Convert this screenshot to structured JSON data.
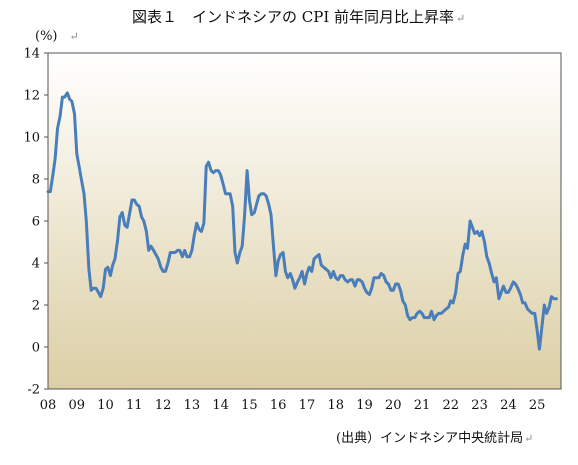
{
  "chart_data": {
    "type": "line",
    "title": "図表１　インドネシアの CPI 前年同月比上昇率",
    "title_mark": "↵",
    "unit": "(%)",
    "unit_mark": "↵",
    "source": "(出典）インドネシア中央統計局",
    "source_mark": "↵",
    "xlabel": "",
    "ylabel": "",
    "ylim": [
      -2,
      14
    ],
    "yticks": [
      "14",
      "12",
      "10",
      "8",
      "6",
      "4",
      "2",
      "0",
      "-2"
    ],
    "xticks": [
      "08",
      "09",
      "10",
      "11",
      "12",
      "13",
      "14",
      "15",
      "16",
      "17",
      "18",
      "19",
      "20",
      "21",
      "22",
      "23",
      "24",
      "25"
    ],
    "xlim": [
      2008.0,
      2025.83
    ],
    "grid": false,
    "legend": "none",
    "colors": {
      "line": "#4a7ebb",
      "plot_top": "#ffffff",
      "plot_bottom": "#dccfa5",
      "axis": "#555555"
    },
    "series": [
      {
        "x": [
          2008.0,
          2008.08,
          2008.17,
          2008.25,
          2008.33,
          2008.42,
          2008.5,
          2008.58,
          2008.67,
          2008.75,
          2008.83,
          2008.92,
          2009.0,
          2009.08,
          2009.17,
          2009.25,
          2009.33,
          2009.42,
          2009.5,
          2009.58,
          2009.67,
          2009.75,
          2009.83,
          2009.92,
          2010.0,
          2010.08,
          2010.17,
          2010.25,
          2010.33,
          2010.42,
          2010.5,
          2010.58,
          2010.67,
          2010.75,
          2010.83,
          2010.92,
          2011.0,
          2011.08,
          2011.17,
          2011.25,
          2011.33,
          2011.42,
          2011.5,
          2011.58,
          2011.67,
          2011.75,
          2011.83,
          2011.92,
          2012.0,
          2012.08,
          2012.17,
          2012.25,
          2012.33,
          2012.42,
          2012.5,
          2012.58,
          2012.67,
          2012.75,
          2012.83,
          2012.92,
          2013.0,
          2013.08,
          2013.17,
          2013.25,
          2013.33,
          2013.42,
          2013.5,
          2013.58,
          2013.67,
          2013.75,
          2013.83,
          2013.92,
          2014.0,
          2014.08,
          2014.17,
          2014.25,
          2014.33,
          2014.42,
          2014.5,
          2014.58,
          2014.67,
          2014.75,
          2014.83,
          2014.92,
          2015.0,
          2015.08,
          2015.17,
          2015.25,
          2015.33,
          2015.42,
          2015.5,
          2015.58,
          2015.67,
          2015.75,
          2015.83,
          2015.92,
          2016.0,
          2016.08,
          2016.17,
          2016.25,
          2016.33,
          2016.42,
          2016.5,
          2016.58,
          2016.67,
          2016.75,
          2016.83,
          2016.92,
          2017.0,
          2017.08,
          2017.17,
          2017.25,
          2017.33,
          2017.42,
          2017.5,
          2017.58,
          2017.67,
          2017.75,
          2017.83,
          2017.92,
          2018.0,
          2018.08,
          2018.17,
          2018.25,
          2018.33,
          2018.42,
          2018.5,
          2018.58,
          2018.67,
          2018.75,
          2018.83,
          2018.92,
          2019.0,
          2019.08,
          2019.17,
          2019.25,
          2019.33,
          2019.42,
          2019.5,
          2019.58,
          2019.67,
          2019.75,
          2019.83,
          2019.92,
          2020.0,
          2020.08,
          2020.17,
          2020.25,
          2020.33,
          2020.42,
          2020.5,
          2020.58,
          2020.67,
          2020.75,
          2020.83,
          2020.92,
          2021.0,
          2021.08,
          2021.17,
          2021.25,
          2021.33,
          2021.42,
          2021.5,
          2021.58,
          2021.67,
          2021.75,
          2021.83,
          2021.92,
          2022.0,
          2022.08,
          2022.17,
          2022.25,
          2022.33,
          2022.42,
          2022.5,
          2022.58,
          2022.67,
          2022.75,
          2022.83,
          2022.92,
          2023.0,
          2023.08,
          2023.17,
          2023.25,
          2023.33,
          2023.42,
          2023.5,
          2023.58,
          2023.67,
          2023.75,
          2023.83,
          2023.92,
          2024.0,
          2024.08,
          2024.17,
          2024.25,
          2024.33,
          2024.42,
          2024.5,
          2024.58,
          2024.67,
          2024.75,
          2024.83,
          2024.92,
          2025.0,
          2025.08,
          2025.17,
          2025.25,
          2025.33,
          2025.42,
          2025.5,
          2025.58,
          2025.67
        ],
        "values": [
          7.4,
          7.4,
          8.2,
          9.0,
          10.4,
          11.0,
          11.9,
          11.9,
          12.1,
          11.8,
          11.7,
          11.1,
          9.2,
          8.6,
          7.9,
          7.3,
          6.0,
          3.7,
          2.7,
          2.8,
          2.8,
          2.6,
          2.4,
          2.8,
          3.7,
          3.8,
          3.4,
          3.9,
          4.2,
          5.1,
          6.2,
          6.4,
          5.8,
          5.7,
          6.3,
          7.0,
          7.0,
          6.8,
          6.7,
          6.2,
          6.0,
          5.5,
          4.6,
          4.8,
          4.6,
          4.4,
          4.2,
          3.8,
          3.6,
          3.6,
          4.0,
          4.5,
          4.5,
          4.5,
          4.6,
          4.6,
          4.3,
          4.6,
          4.3,
          4.3,
          4.6,
          5.3,
          5.9,
          5.6,
          5.5,
          5.9,
          8.6,
          8.8,
          8.4,
          8.3,
          8.4,
          8.4,
          8.2,
          7.8,
          7.3,
          7.3,
          7.3,
          6.7,
          4.5,
          4.0,
          4.5,
          4.8,
          6.2,
          8.4,
          7.0,
          6.3,
          6.4,
          6.8,
          7.2,
          7.3,
          7.3,
          7.2,
          6.8,
          6.3,
          4.9,
          3.4,
          4.1,
          4.4,
          4.5,
          3.6,
          3.3,
          3.5,
          3.2,
          2.8,
          3.1,
          3.3,
          3.6,
          3.0,
          3.5,
          3.8,
          3.6,
          4.2,
          4.3,
          4.4,
          3.9,
          3.8,
          3.7,
          3.6,
          3.3,
          3.6,
          3.3,
          3.2,
          3.4,
          3.4,
          3.2,
          3.1,
          3.2,
          3.2,
          2.9,
          3.2,
          3.2,
          3.1,
          2.8,
          2.6,
          2.5,
          2.8,
          3.3,
          3.3,
          3.3,
          3.5,
          3.4,
          3.1,
          3.0,
          2.7,
          2.7,
          3.0,
          3.0,
          2.7,
          2.2,
          2.0,
          1.5,
          1.3,
          1.4,
          1.4,
          1.6,
          1.7,
          1.6,
          1.4,
          1.4,
          1.4,
          1.7,
          1.3,
          1.5,
          1.6,
          1.6,
          1.7,
          1.8,
          1.9,
          2.2,
          2.1,
          2.6,
          3.5,
          3.6,
          4.4,
          4.9,
          4.7,
          6.0,
          5.7,
          5.4,
          5.5,
          5.3,
          5.5,
          5.0,
          4.3,
          4.0,
          3.5,
          3.1,
          3.3,
          2.3,
          2.6,
          2.9,
          2.6,
          2.6,
          2.8,
          3.1,
          3.0,
          2.8,
          2.5,
          2.1,
          2.1,
          1.8,
          1.7,
          1.6,
          1.6,
          0.8,
          -0.1,
          1.0,
          2.0,
          1.6,
          1.9,
          2.4,
          2.3,
          2.3
        ]
      }
    ]
  }
}
